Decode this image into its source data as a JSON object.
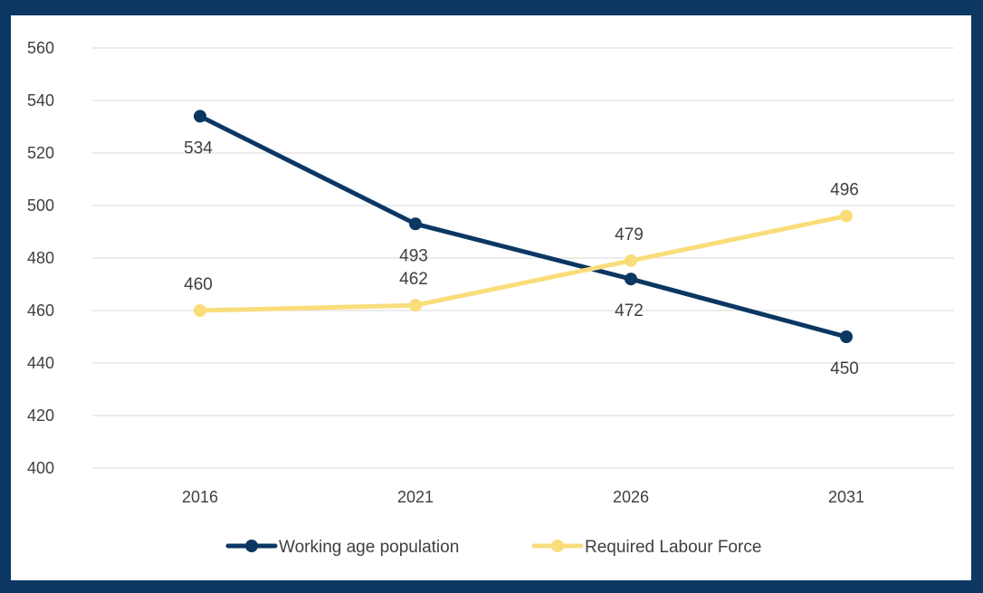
{
  "chart_data": {
    "type": "line",
    "title": "",
    "xlabel": "",
    "ylabel": "",
    "categories": [
      "2016",
      "2021",
      "2026",
      "2031"
    ],
    "ylim": [
      400,
      560
    ],
    "yticks": [
      400,
      420,
      440,
      460,
      480,
      500,
      520,
      540,
      560
    ],
    "grid": true,
    "legend_position": "bottom",
    "series": [
      {
        "name": "Working age population",
        "values": [
          534,
          493,
          472,
          450
        ],
        "color": "#0b3762",
        "label_side": "below"
      },
      {
        "name": "Required Labour Force",
        "values": [
          460,
          462,
          479,
          496
        ],
        "color": "#f9dd7b",
        "label_side": "above"
      }
    ]
  }
}
